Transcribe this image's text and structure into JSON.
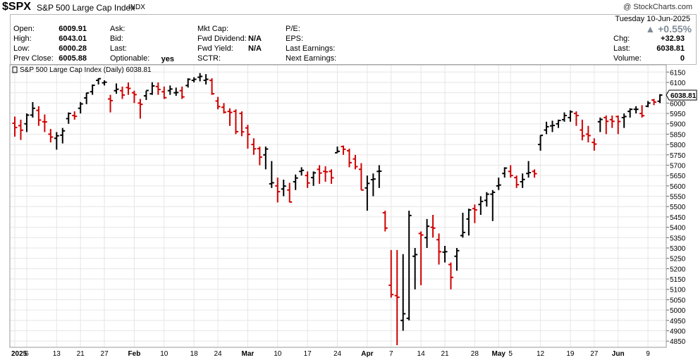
{
  "header": {
    "symbol": "$SPX",
    "company": "S&P 500 Large Cap Index",
    "exchange": "INDX",
    "credit": "@ StockCharts.com"
  },
  "quote": {
    "col1": [
      {
        "label": "Open:",
        "value": "6009.91"
      },
      {
        "label": "High:",
        "value": "6043.01"
      },
      {
        "label": "Low:",
        "value": "6000.28"
      },
      {
        "label": "Prev Close:",
        "value": "6005.88"
      }
    ],
    "col2": [
      {
        "label": "Ask:",
        "value": ""
      },
      {
        "label": "Bid:",
        "value": ""
      },
      {
        "label": "Last:",
        "value": ""
      },
      {
        "label": "Optionable:",
        "value": "yes"
      }
    ],
    "col3": [
      {
        "label": "Mkt Cap:",
        "value": ""
      },
      {
        "label": "Fwd Dividend:",
        "value": "N/A"
      },
      {
        "label": "Fwd Yield:",
        "value": "N/A"
      },
      {
        "label": "SCTR:",
        "value": ""
      }
    ],
    "col4": [
      {
        "label": "P/E:",
        "value": ""
      },
      {
        "label": "EPS:",
        "value": ""
      },
      {
        "label": "Last Earnings:",
        "value": ""
      },
      {
        "label": "Next Earnings:",
        "value": ""
      }
    ],
    "date": "Tuesday  10-Jun-2025",
    "pct_change": "▲ +0.55%",
    "chg_label": "Chg:",
    "chg": "+32.93",
    "last_label": "Last:",
    "last": "6038.81",
    "volume_label": "Volume:",
    "volume": "0"
  },
  "colors": {
    "up": "#000000",
    "down": "#d10000",
    "grid": "#e6e6e6",
    "border": "#9a9a9a"
  },
  "chart_data": {
    "type": "ohlc",
    "title": "S&P 500 Large Cap Index (Daily) 6038.81",
    "last_price_label": "6038.81",
    "ylim": [
      4820,
      6185
    ],
    "y_ticks": [
      4850,
      4900,
      4950,
      5000,
      5050,
      5100,
      5150,
      5200,
      5250,
      5300,
      5350,
      5400,
      5450,
      5500,
      5550,
      5600,
      5650,
      5700,
      5750,
      5800,
      5850,
      5900,
      5950,
      6000,
      6050,
      6100,
      6150
    ],
    "x_ticks": [
      {
        "i": 0,
        "label": "2025",
        "bold": true
      },
      {
        "i": 2,
        "label": "6"
      },
      {
        "i": 7,
        "label": "13"
      },
      {
        "i": 11,
        "label": "21"
      },
      {
        "i": 15,
        "label": "27"
      },
      {
        "i": 20,
        "label": "Feb",
        "bold": true
      },
      {
        "i": 25,
        "label": "10"
      },
      {
        "i": 30,
        "label": "18"
      },
      {
        "i": 34,
        "label": "24"
      },
      {
        "i": 39,
        "label": "Mar",
        "bold": true
      },
      {
        "i": 44,
        "label": "10"
      },
      {
        "i": 49,
        "label": "17"
      },
      {
        "i": 54,
        "label": "24"
      },
      {
        "i": 59,
        "label": "Apr",
        "bold": true
      },
      {
        "i": 63,
        "label": "7"
      },
      {
        "i": 68,
        "label": "14"
      },
      {
        "i": 72,
        "label": "21"
      },
      {
        "i": 77,
        "label": "28"
      },
      {
        "i": 81,
        "label": "May",
        "bold": true
      },
      {
        "i": 83,
        "label": "5"
      },
      {
        "i": 88,
        "label": "12"
      },
      {
        "i": 93,
        "label": "19"
      },
      {
        "i": 97,
        "label": "27"
      },
      {
        "i": 101,
        "label": "Jun",
        "bold": true
      },
      {
        "i": 106,
        "label": "9"
      }
    ],
    "bars": [
      [
        5903,
        5935,
        5838,
        5882
      ],
      [
        5891,
        5920,
        5822,
        5869
      ],
      [
        5900,
        5950,
        5860,
        5942
      ],
      [
        5942,
        6005,
        5930,
        5975
      ],
      [
        5965,
        5985,
        5890,
        5918
      ],
      [
        5910,
        5945,
        5860,
        5909
      ],
      [
        5850,
        5875,
        5810,
        5836
      ],
      [
        5830,
        5860,
        5775,
        5842
      ],
      [
        5845,
        5880,
        5805,
        5866
      ],
      [
        5925,
        5955,
        5900,
        5950
      ],
      [
        5940,
        5960,
        5920,
        5936
      ],
      [
        5975,
        6005,
        5950,
        5996
      ],
      [
        6025,
        6050,
        5995,
        6049
      ],
      [
        6055,
        6090,
        6040,
        6086
      ],
      [
        6110,
        6120,
        6090,
        6118
      ],
      [
        6098,
        6110,
        6085,
        6101
      ],
      [
        6020,
        6040,
        5955,
        6012
      ],
      [
        6060,
        6095,
        6045,
        6067
      ],
      [
        6060,
        6080,
        6020,
        6039
      ],
      [
        6075,
        6100,
        6040,
        6071
      ],
      [
        6050,
        6060,
        6000,
        6041
      ],
      [
        6000,
        6020,
        5925,
        5994
      ],
      [
        6035,
        6060,
        6015,
        6061
      ],
      [
        6045,
        6101,
        6040,
        6083
      ],
      [
        6080,
        6100,
        6040,
        6066
      ],
      [
        6055,
        6080,
        6020,
        6026
      ],
      [
        6060,
        6085,
        6040,
        6068
      ],
      [
        6050,
        6075,
        6035,
        6051
      ],
      [
        6060,
        6080,
        6020,
        6030
      ],
      [
        6085,
        6120,
        6075,
        6115
      ],
      [
        6110,
        6125,
        6100,
        6115
      ],
      [
        6125,
        6145,
        6105,
        6129
      ],
      [
        6110,
        6140,
        6090,
        6115
      ],
      [
        6110,
        6120,
        6040,
        6045
      ],
      [
        6010,
        6030,
        5970,
        5983
      ],
      [
        5980,
        6000,
        5950,
        5956
      ],
      [
        5960,
        5975,
        5890,
        5955
      ],
      [
        5960,
        5970,
        5850,
        5862
      ],
      [
        5950,
        5960,
        5840,
        5861
      ],
      [
        5880,
        5895,
        5780,
        5849
      ],
      [
        5800,
        5830,
        5750,
        5779
      ],
      [
        5780,
        5790,
        5700,
        5739
      ],
      [
        5750,
        5790,
        5680,
        5778
      ],
      [
        5610,
        5720,
        5590,
        5615
      ],
      [
        5600,
        5640,
        5520,
        5572
      ],
      [
        5585,
        5630,
        5550,
        5599
      ],
      [
        5580,
        5615,
        5520,
        5522
      ],
      [
        5620,
        5655,
        5580,
        5638
      ],
      [
        5670,
        5690,
        5650,
        5675
      ],
      [
        5650,
        5670,
        5590,
        5614
      ],
      [
        5640,
        5670,
        5600,
        5663
      ],
      [
        5680,
        5700,
        5610,
        5662
      ],
      [
        5670,
        5695,
        5620,
        5668
      ],
      [
        5670,
        5680,
        5610,
        5639
      ],
      [
        5760,
        5790,
        5760,
        5767
      ],
      [
        5790,
        5795,
        5750,
        5777
      ],
      [
        5770,
        5780,
        5690,
        5712
      ],
      [
        5730,
        5750,
        5680,
        5693
      ],
      [
        5680,
        5710,
        5580,
        5580
      ],
      [
        5590,
        5650,
        5480,
        5612
      ],
      [
        5630,
        5660,
        5550,
        5633
      ],
      [
        5670,
        5700,
        5590,
        5671
      ],
      [
        5470,
        5480,
        5380,
        5396
      ],
      [
        5120,
        5290,
        5060,
        5075
      ],
      [
        5070,
        5290,
        4830,
        5062
      ],
      [
        4950,
        5270,
        4900,
        4982
      ],
      [
        4960,
        5480,
        4950,
        5457
      ],
      [
        5260,
        5300,
        5100,
        5268
      ],
      [
        5370,
        5380,
        5120,
        5363
      ],
      [
        5350,
        5440,
        5300,
        5405
      ],
      [
        5400,
        5460,
        5350,
        5396
      ],
      [
        5340,
        5370,
        5220,
        5282
      ],
      [
        5280,
        5310,
        5230,
        5282
      ],
      [
        5220,
        5230,
        5100,
        5158
      ],
      [
        5260,
        5300,
        5190,
        5287
      ],
      [
        5360,
        5470,
        5350,
        5375
      ],
      [
        5440,
        5490,
        5360,
        5484
      ],
      [
        5490,
        5510,
        5420,
        5484
      ],
      [
        5510,
        5550,
        5460,
        5525
      ],
      [
        5530,
        5570,
        5500,
        5560
      ],
      [
        5560,
        5580,
        5430,
        5569
      ],
      [
        5600,
        5640,
        5580,
        5604
      ],
      [
        5660,
        5690,
        5640,
        5686
      ],
      [
        5670,
        5700,
        5640,
        5650
      ],
      [
        5640,
        5650,
        5590,
        5606
      ],
      [
        5620,
        5660,
        5590,
        5631
      ],
      [
        5660,
        5720,
        5640,
        5664
      ],
      [
        5670,
        5680,
        5640,
        5659
      ],
      [
        5800,
        5845,
        5770,
        5844
      ],
      [
        5870,
        5910,
        5850,
        5886
      ],
      [
        5890,
        5915,
        5860,
        5892
      ],
      [
        5900,
        5920,
        5880,
        5916
      ],
      [
        5920,
        5955,
        5910,
        5940
      ],
      [
        5930,
        5965,
        5910,
        5958
      ],
      [
        5950,
        5960,
        5890,
        5940
      ],
      [
        5870,
        5920,
        5820,
        5842
      ],
      [
        5850,
        5890,
        5810,
        5843
      ],
      [
        5810,
        5830,
        5770,
        5802
      ],
      [
        5910,
        5930,
        5860,
        5921
      ],
      [
        5930,
        5940,
        5850,
        5912
      ],
      [
        5920,
        5940,
        5880,
        5912
      ],
      [
        5935,
        5940,
        5850,
        5911
      ],
      [
        5930,
        5950,
        5880,
        5935
      ],
      [
        5960,
        5975,
        5930,
        5970
      ],
      [
        5970,
        5985,
        5950,
        5970
      ],
      [
        5950,
        5990,
        5930,
        5939
      ],
      [
        5985,
        6010,
        5980,
        6000
      ],
      [
        6015,
        6020,
        5990,
        6005
      ],
      [
        6009,
        6043,
        6000,
        6039
      ]
    ]
  }
}
